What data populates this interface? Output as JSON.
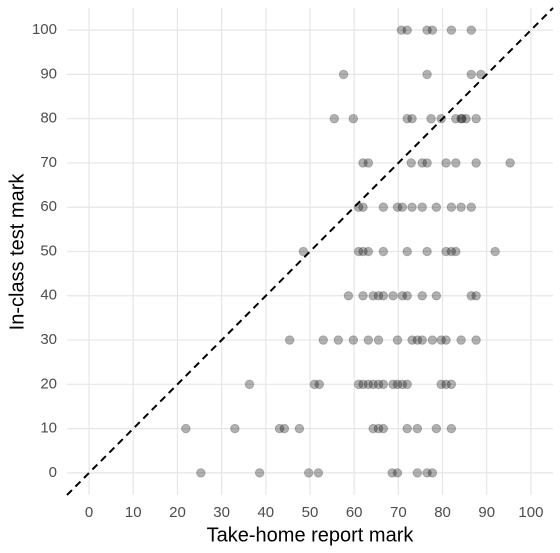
{
  "chart_data": {
    "type": "scatter",
    "x_label": "Take-home report mark",
    "y_label": "In-class test mark",
    "x": [
      70.7,
      72,
      76.5,
      77.7,
      82,
      86.5,
      57.6,
      76.5,
      86.5,
      88.7,
      55.5,
      59.8,
      72,
      73.1,
      77.4,
      79.7,
      83,
      84.2,
      85.3,
      84.4,
      87.6,
      62,
      63.2,
      72.9,
      75.4,
      76.5,
      80.8,
      83,
      87.6,
      95.3,
      61,
      62,
      66.6,
      69.8,
      70.9,
      73.1,
      75.4,
      78.6,
      82,
      84.2,
      86.5,
      48.5,
      61,
      62,
      63.2,
      66.6,
      72,
      76.5,
      80.8,
      82,
      83,
      91.9,
      58.7,
      62,
      64.3,
      65.5,
      66.6,
      68.8,
      70.9,
      72,
      75.4,
      78.6,
      86.5,
      87.6,
      45.4,
      53,
      56.4,
      59.8,
      63.2,
      65.5,
      69.8,
      73.1,
      74.3,
      75.4,
      77.7,
      79.7,
      80.8,
      84.2,
      87.6,
      36.3,
      51,
      52.1,
      61,
      62,
      63.2,
      64.3,
      65.5,
      66.6,
      68.8,
      69.8,
      70.9,
      72,
      79.7,
      80.8,
      82,
      21.9,
      33,
      43.1,
      44.2,
      47.6,
      64.3,
      65.5,
      66.6,
      72,
      74.3,
      78.6,
      82,
      25.3,
      38.6,
      49.7,
      51.9,
      68.6,
      69.8,
      74.3,
      76.5,
      77.7
    ],
    "values": [
      100,
      100,
      100,
      100,
      100,
      100,
      90,
      90,
      90,
      90,
      80,
      80,
      80,
      80,
      80,
      80,
      80,
      80,
      80,
      80,
      80,
      70,
      70,
      70,
      70,
      70,
      70,
      70,
      70,
      70,
      60,
      60,
      60,
      60,
      60,
      60,
      60,
      60,
      60,
      60,
      60,
      50,
      50,
      50,
      50,
      50,
      50,
      50,
      50,
      50,
      50,
      50,
      40,
      40,
      40,
      40,
      40,
      40,
      40,
      40,
      40,
      40,
      40,
      40,
      30,
      30,
      30,
      30,
      30,
      30,
      30,
      30,
      30,
      30,
      30,
      30,
      30,
      30,
      30,
      20,
      20,
      20,
      20,
      20,
      20,
      20,
      20,
      20,
      20,
      20,
      20,
      20,
      20,
      20,
      20,
      10,
      10,
      10,
      10,
      10,
      10,
      10,
      10,
      10,
      10,
      10,
      10,
      0,
      0,
      0,
      0,
      0,
      0,
      0,
      0,
      0
    ],
    "color": "#000000",
    "xlim": [
      -5,
      105
    ],
    "ylim": [
      -5,
      105
    ],
    "xticks": [
      0,
      10,
      20,
      30,
      40,
      50,
      60,
      70,
      80,
      90,
      100
    ],
    "yticks": [
      0,
      10,
      20,
      30,
      40,
      50,
      60,
      70,
      80,
      90,
      100
    ],
    "grid": true,
    "identity_line": true
  }
}
